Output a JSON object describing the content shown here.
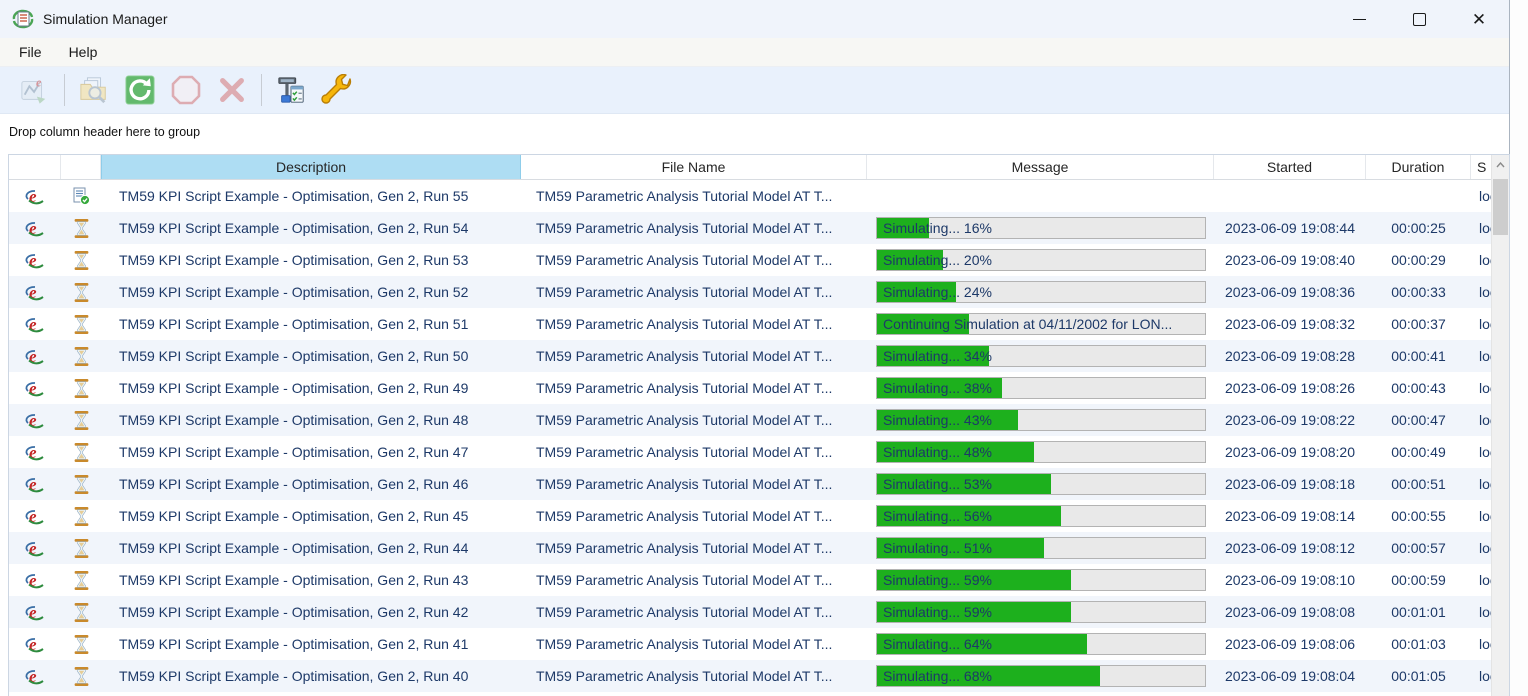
{
  "window": {
    "title": "Simulation Manager",
    "controls": {
      "minimize": "minimize",
      "maximize": "maximize",
      "close": "✕"
    }
  },
  "menu": {
    "items": [
      "File",
      "Help"
    ]
  },
  "toolbar": {
    "buttons": [
      {
        "icon": "view-results-icon",
        "enabled": false
      },
      {
        "icon": "view-simulation-file-icon",
        "enabled": false
      },
      {
        "icon": "refresh-icon",
        "enabled": true
      },
      {
        "icon": "stop-simulation-icon",
        "enabled": false
      },
      {
        "icon": "delete-simulation-icon",
        "enabled": false
      },
      {
        "icon": "simulation-queue-icon",
        "enabled": true
      },
      {
        "icon": "options-wrench-icon",
        "enabled": true
      }
    ]
  },
  "group_hint": "Drop column header here to group",
  "table": {
    "columns": [
      {
        "label": ""
      },
      {
        "label": ""
      },
      {
        "label": "Description"
      },
      {
        "label": "File Name"
      },
      {
        "label": "Message"
      },
      {
        "label": "Started"
      },
      {
        "label": "Duration"
      },
      {
        "label": "S"
      }
    ],
    "rows": [
      {
        "status": "completed",
        "description": "TM59 KPI Script Example - Optimisation, Gen 2, Run 55",
        "file_name": "TM59 Parametric Analysis Tutorial Model AT T...",
        "message": null,
        "progress_percent": null,
        "started": "",
        "duration": "",
        "server": "local"
      },
      {
        "status": "running",
        "description": "TM59 KPI Script Example - Optimisation, Gen 2, Run 54",
        "file_name": "TM59 Parametric Analysis Tutorial Model AT T...",
        "message": "Simulating... 16%",
        "progress_percent": 16,
        "started": "2023-06-09 19:08:44",
        "duration": "00:00:25",
        "server": "local"
      },
      {
        "status": "running",
        "description": "TM59 KPI Script Example - Optimisation, Gen 2, Run 53",
        "file_name": "TM59 Parametric Analysis Tutorial Model AT T...",
        "message": "Simulating... 20%",
        "progress_percent": 20,
        "started": "2023-06-09 19:08:40",
        "duration": "00:00:29",
        "server": "local"
      },
      {
        "status": "running",
        "description": "TM59 KPI Script Example - Optimisation, Gen 2, Run 52",
        "file_name": "TM59 Parametric Analysis Tutorial Model AT T...",
        "message": "Simulating... 24%",
        "progress_percent": 24,
        "started": "2023-06-09 19:08:36",
        "duration": "00:00:33",
        "server": "local"
      },
      {
        "status": "running",
        "description": "TM59 KPI Script Example - Optimisation, Gen 2, Run 51",
        "file_name": "TM59 Parametric Analysis Tutorial Model AT T...",
        "message": "Continuing Simulation at 04/11/2002 for LON...",
        "progress_percent": 28,
        "started": "2023-06-09 19:08:32",
        "duration": "00:00:37",
        "server": "local"
      },
      {
        "status": "running",
        "description": "TM59 KPI Script Example - Optimisation, Gen 2, Run 50",
        "file_name": "TM59 Parametric Analysis Tutorial Model AT T...",
        "message": "Simulating... 34%",
        "progress_percent": 34,
        "started": "2023-06-09 19:08:28",
        "duration": "00:00:41",
        "server": "local"
      },
      {
        "status": "running",
        "description": "TM59 KPI Script Example - Optimisation, Gen 2, Run 49",
        "file_name": "TM59 Parametric Analysis Tutorial Model AT T...",
        "message": "Simulating... 38%",
        "progress_percent": 38,
        "started": "2023-06-09 19:08:26",
        "duration": "00:00:43",
        "server": "local"
      },
      {
        "status": "running",
        "description": "TM59 KPI Script Example - Optimisation, Gen 2, Run 48",
        "file_name": "TM59 Parametric Analysis Tutorial Model AT T...",
        "message": "Simulating... 43%",
        "progress_percent": 43,
        "started": "2023-06-09 19:08:22",
        "duration": "00:00:47",
        "server": "local"
      },
      {
        "status": "running",
        "description": "TM59 KPI Script Example - Optimisation, Gen 2, Run 47",
        "file_name": "TM59 Parametric Analysis Tutorial Model AT T...",
        "message": "Simulating... 48%",
        "progress_percent": 48,
        "started": "2023-06-09 19:08:20",
        "duration": "00:00:49",
        "server": "local"
      },
      {
        "status": "running",
        "description": "TM59 KPI Script Example - Optimisation, Gen 2, Run 46",
        "file_name": "TM59 Parametric Analysis Tutorial Model AT T...",
        "message": "Simulating... 53%",
        "progress_percent": 53,
        "started": "2023-06-09 19:08:18",
        "duration": "00:00:51",
        "server": "local"
      },
      {
        "status": "running",
        "description": "TM59 KPI Script Example - Optimisation, Gen 2, Run 45",
        "file_name": "TM59 Parametric Analysis Tutorial Model AT T...",
        "message": "Simulating... 56%",
        "progress_percent": 56,
        "started": "2023-06-09 19:08:14",
        "duration": "00:00:55",
        "server": "local"
      },
      {
        "status": "running",
        "description": "TM59 KPI Script Example - Optimisation, Gen 2, Run 44",
        "file_name": "TM59 Parametric Analysis Tutorial Model AT T...",
        "message": "Simulating... 51%",
        "progress_percent": 51,
        "started": "2023-06-09 19:08:12",
        "duration": "00:00:57",
        "server": "local"
      },
      {
        "status": "running",
        "description": "TM59 KPI Script Example - Optimisation, Gen 2, Run 43",
        "file_name": "TM59 Parametric Analysis Tutorial Model AT T...",
        "message": "Simulating... 59%",
        "progress_percent": 59,
        "started": "2023-06-09 19:08:10",
        "duration": "00:00:59",
        "server": "local"
      },
      {
        "status": "running",
        "description": "TM59 KPI Script Example - Optimisation, Gen 2, Run 42",
        "file_name": "TM59 Parametric Analysis Tutorial Model AT T...",
        "message": "Simulating... 59%",
        "progress_percent": 59,
        "started": "2023-06-09 19:08:08",
        "duration": "00:01:01",
        "server": "local"
      },
      {
        "status": "running",
        "description": "TM59 KPI Script Example - Optimisation, Gen 2, Run 41",
        "file_name": "TM59 Parametric Analysis Tutorial Model AT T...",
        "message": "Simulating... 64%",
        "progress_percent": 64,
        "started": "2023-06-09 19:08:06",
        "duration": "00:01:03",
        "server": "local"
      },
      {
        "status": "running",
        "description": "TM59 KPI Script Example - Optimisation, Gen 2, Run 40",
        "file_name": "TM59 Parametric Analysis Tutorial Model AT T...",
        "message": "Simulating... 68%",
        "progress_percent": 68,
        "started": "2023-06-09 19:08:04",
        "duration": "00:01:05",
        "server": "local"
      }
    ]
  },
  "colors": {
    "progress_green": "#1db01d",
    "header_highlight": "#aeddf3",
    "row_alt": "#f1f5fb",
    "cell_text": "#1d3968",
    "toolbar_bg": "#e9f1fc",
    "titlebar_bg": "#f0f4fb"
  }
}
